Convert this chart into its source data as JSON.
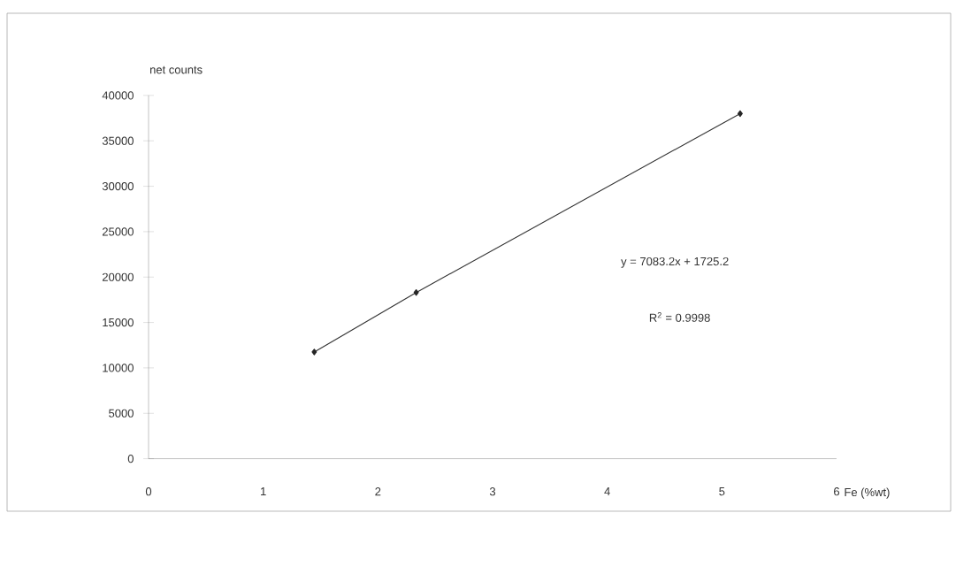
{
  "chart_data": {
    "type": "line",
    "xlabel": "Fe (%wt)",
    "ylabel": "net counts",
    "annotations": [
      "y = 7083.2x + 1725.2",
      "R$^{2}$ = 0.9998"
    ],
    "x": [
      1.445,
      2.334,
      5.159
    ],
    "series": [
      {
        "color": "#333333",
        "values": [
          11750,
          18300,
          38000
        ]
      }
    ],
    "marker": "diamond",
    "xlim": [
      0,
      6
    ],
    "ylim": [
      0,
      40000
    ],
    "xticks": [
      0,
      1,
      2,
      3,
      4,
      5,
      6
    ],
    "yticks": [
      0,
      5000,
      10000,
      15000,
      20000,
      25000,
      30000,
      35000,
      40000
    ]
  }
}
